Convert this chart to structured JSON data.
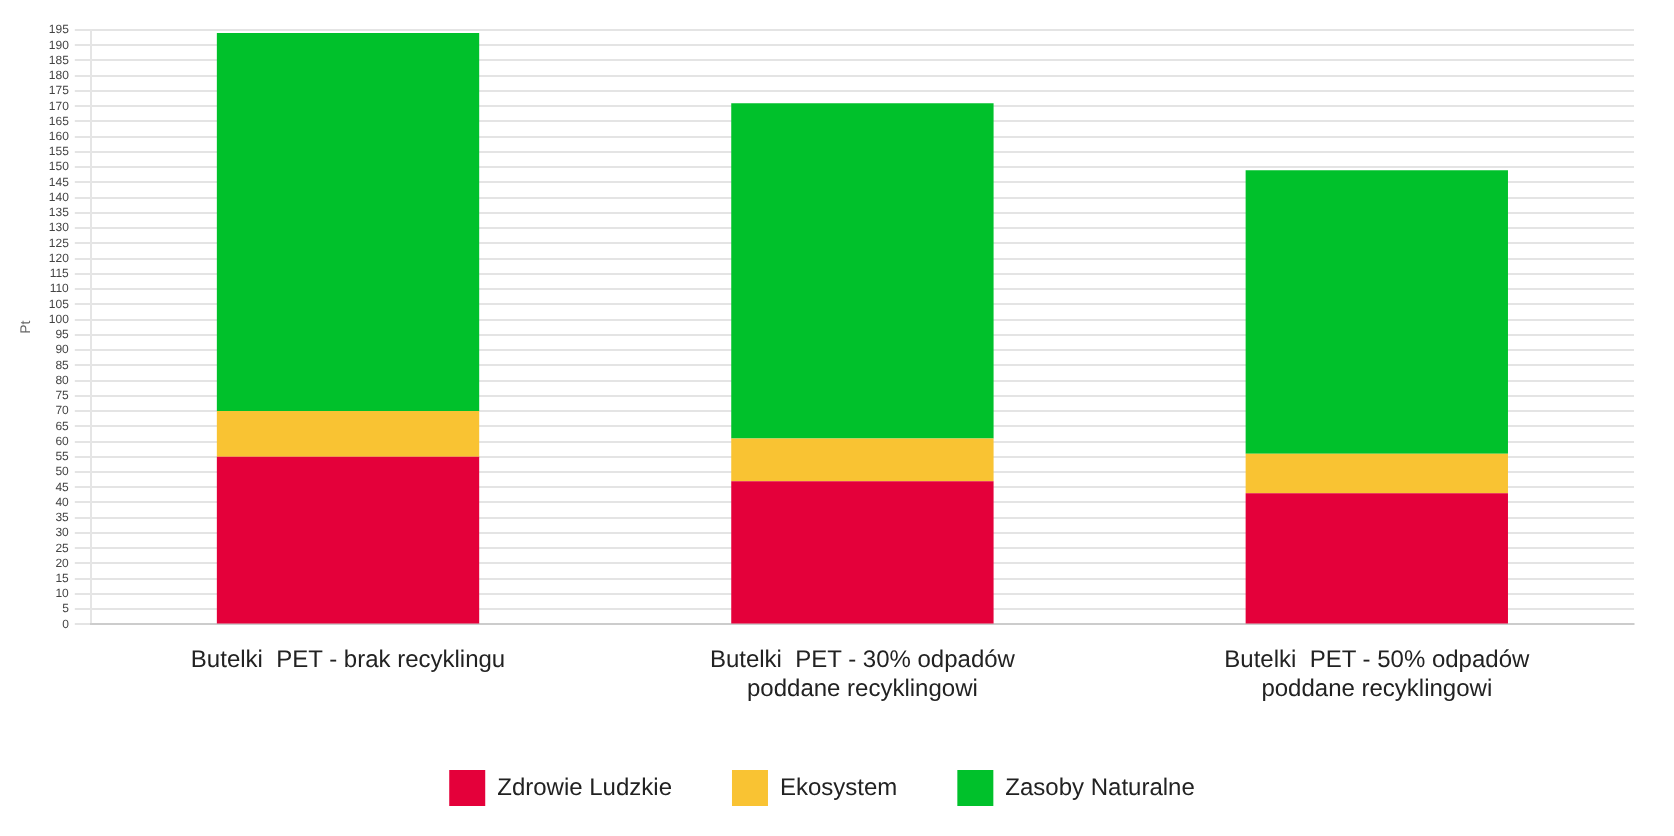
{
  "chart_data": {
    "type": "bar",
    "stacked": true,
    "ylabel": "Pt",
    "categories": [
      "Butelki  PET - brak recyklingu",
      "Butelki  PET - 30% odpadów poddane recyklingowi",
      "Butelki  PET - 50% odpadów poddane recyklingowi"
    ],
    "series": [
      {
        "name": "Zdrowie Ludzkie",
        "color": "#e4003a",
        "values": [
          55,
          47,
          43
        ]
      },
      {
        "name": "Ekosystem",
        "color": "#f9c333",
        "values": [
          15,
          14,
          13
        ]
      },
      {
        "name": "Zasoby Naturalne",
        "color": "#00c12b",
        "values": [
          124,
          110,
          93
        ]
      }
    ],
    "ylim": [
      0,
      195
    ],
    "yticks": [
      0,
      5,
      10,
      15,
      20,
      25,
      30,
      35,
      40,
      45,
      50,
      55,
      60,
      65,
      70,
      75,
      80,
      85,
      90,
      95,
      100,
      105,
      110,
      115,
      120,
      125,
      130,
      135,
      140,
      145,
      150,
      155,
      160,
      165,
      170,
      175,
      180,
      185,
      190,
      195
    ],
    "grid": "y",
    "legend": "bottom"
  }
}
